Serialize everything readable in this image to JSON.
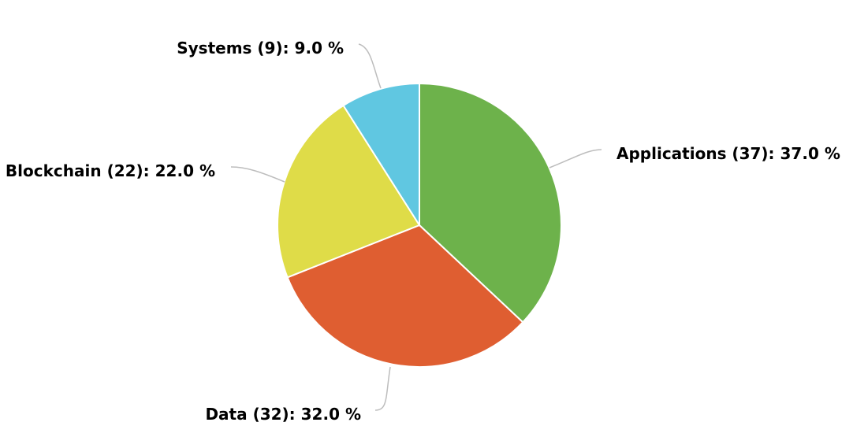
{
  "chart_data": {
    "type": "pie",
    "title": "",
    "start_angle_deg": 0,
    "direction": "clockwise",
    "slices": [
      {
        "name": "Applications",
        "value": 37,
        "percent": 37.0,
        "label": "Applications (37): 37.0 %",
        "color": "#6db24b"
      },
      {
        "name": "Data",
        "value": 32,
        "percent": 32.0,
        "label": "Data (32): 32.0 %",
        "color": "#df5e31"
      },
      {
        "name": "Blockchain",
        "value": 22,
        "percent": 22.0,
        "label": "Blockchain (22): 22.0 %",
        "color": "#dfdc48"
      },
      {
        "name": "Systems",
        "value": 9,
        "percent": 9.0,
        "label": "Systems (9): 9.0 %",
        "color": "#60c7e1"
      }
    ]
  }
}
